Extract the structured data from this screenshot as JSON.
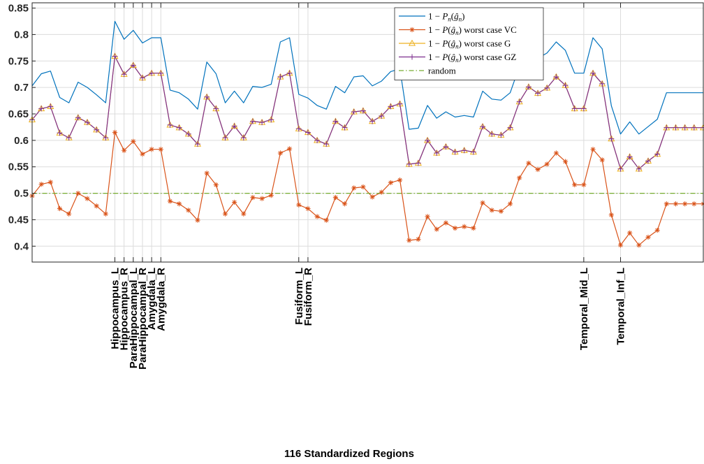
{
  "chart_data": {
    "type": "line",
    "title": "",
    "xlabel": "116 Standardized Regions",
    "ylabel": "",
    "xlim": [
      1,
      74
    ],
    "ylim": [
      0.37,
      0.86
    ],
    "yticks": [
      0.4,
      0.45,
      0.5,
      0.55,
      0.6,
      0.65,
      0.7,
      0.75,
      0.8,
      0.85
    ],
    "ytick_labels": [
      "0.4",
      "0.45",
      "0.5",
      "0.55",
      "0.6",
      "0.65",
      "0.7",
      "0.75",
      "0.8",
      "0.85"
    ],
    "grid": true,
    "legend_position": "top-right",
    "highlighted_regions": [
      {
        "x": 10,
        "label": "Hippocampus_L"
      },
      {
        "x": 11,
        "label": "Hippocampus_R"
      },
      {
        "x": 12,
        "label": "ParaHippocampal_L"
      },
      {
        "x": 13,
        "label": "ParaHippocampal_R"
      },
      {
        "x": 14,
        "label": "Amygdala_L"
      },
      {
        "x": 15,
        "label": "Amygdala_R"
      },
      {
        "x": 30,
        "label": "Fusiform_L"
      },
      {
        "x": 31,
        "label": "Fusiform_R"
      },
      {
        "x": 61,
        "label": "Temporal_Mid_L"
      },
      {
        "x": 65,
        "label": "Temporal_Inf_L"
      }
    ],
    "series": [
      {
        "name": "1 − P_n(ĝ_n)",
        "legend": {
          "pre": "1 − ",
          "main": "P",
          "sub": "n",
          "open": "(",
          "arg": "ĝ",
          "argsub": "n",
          "close": ")",
          "post": ""
        },
        "color": "#0072BD",
        "marker": "none",
        "values": [
          0.703,
          0.726,
          0.731,
          0.681,
          0.671,
          0.71,
          0.7,
          0.686,
          0.671,
          0.825,
          0.791,
          0.808,
          0.784,
          0.794,
          0.794,
          0.695,
          0.69,
          0.678,
          0.659,
          0.748,
          0.726,
          0.671,
          0.693,
          0.671,
          0.702,
          0.7,
          0.706,
          0.786,
          0.794,
          0.687,
          0.68,
          0.666,
          0.659,
          0.702,
          0.69,
          0.72,
          0.722,
          0.703,
          0.712,
          0.73,
          0.735,
          0.621,
          0.623,
          0.666,
          0.642,
          0.654,
          0.644,
          0.647,
          0.644,
          0.693,
          0.678,
          0.676,
          0.69,
          0.74,
          0.767,
          0.755,
          0.765,
          0.786,
          0.77,
          0.727,
          0.727,
          0.794,
          0.773,
          0.665,
          0.612,
          0.635,
          0.612,
          0.626,
          0.64,
          0.69,
          0.69,
          0.69,
          0.69,
          0.69
        ]
      },
      {
        "name": "1 − P(ĝ_n) worst case VC",
        "legend": {
          "pre": "1 − ",
          "main": "P",
          "sub": "",
          "open": "(",
          "arg": "ĝ",
          "argsub": "n",
          "close": ")",
          "post": " worst case VC"
        },
        "color": "#D95319",
        "marker": "asterisk",
        "values": [
          0.495,
          0.517,
          0.521,
          0.471,
          0.461,
          0.5,
          0.49,
          0.476,
          0.461,
          0.615,
          0.581,
          0.598,
          0.574,
          0.583,
          0.583,
          0.485,
          0.48,
          0.468,
          0.449,
          0.538,
          0.516,
          0.461,
          0.483,
          0.461,
          0.492,
          0.49,
          0.496,
          0.576,
          0.584,
          0.478,
          0.471,
          0.456,
          0.449,
          0.492,
          0.48,
          0.51,
          0.512,
          0.493,
          0.502,
          0.52,
          0.525,
          0.411,
          0.413,
          0.456,
          0.432,
          0.444,
          0.434,
          0.437,
          0.434,
          0.482,
          0.468,
          0.466,
          0.48,
          0.529,
          0.557,
          0.545,
          0.555,
          0.576,
          0.56,
          0.516,
          0.516,
          0.583,
          0.563,
          0.459,
          0.402,
          0.425,
          0.402,
          0.417,
          0.43,
          0.48,
          0.48,
          0.48,
          0.48,
          0.48
        ]
      },
      {
        "name": "1 − P(ĝ_n) worst case G",
        "legend": {
          "pre": "1 − ",
          "main": "P",
          "sub": "",
          "open": "(",
          "arg": "ĝ",
          "argsub": "n",
          "close": ")",
          "post": " worst case G"
        },
        "color": "#EDB120",
        "marker": "triangle",
        "values": [
          0.639,
          0.66,
          0.664,
          0.614,
          0.605,
          0.643,
          0.634,
          0.62,
          0.605,
          0.759,
          0.725,
          0.742,
          0.718,
          0.727,
          0.727,
          0.629,
          0.624,
          0.612,
          0.593,
          0.682,
          0.66,
          0.605,
          0.627,
          0.605,
          0.636,
          0.634,
          0.639,
          0.72,
          0.727,
          0.622,
          0.615,
          0.6,
          0.593,
          0.636,
          0.624,
          0.654,
          0.656,
          0.636,
          0.646,
          0.664,
          0.669,
          0.555,
          0.557,
          0.6,
          0.576,
          0.588,
          0.578,
          0.581,
          0.578,
          0.626,
          0.612,
          0.61,
          0.624,
          0.673,
          0.701,
          0.689,
          0.699,
          0.72,
          0.704,
          0.66,
          0.66,
          0.727,
          0.707,
          0.603,
          0.546,
          0.569,
          0.546,
          0.561,
          0.574,
          0.624,
          0.624,
          0.624,
          0.624,
          0.624
        ]
      },
      {
        "name": "1 − P(ĝ_n) worst case GZ",
        "legend": {
          "pre": "1 − ",
          "main": "P",
          "sub": "",
          "open": "(",
          "arg": "ĝ",
          "argsub": "n",
          "close": ")",
          "post": " worst case GZ"
        },
        "color": "#7E2F8E",
        "marker": "plus",
        "values": [
          0.639,
          0.66,
          0.664,
          0.614,
          0.605,
          0.643,
          0.634,
          0.62,
          0.605,
          0.759,
          0.725,
          0.742,
          0.718,
          0.727,
          0.727,
          0.629,
          0.624,
          0.612,
          0.593,
          0.682,
          0.66,
          0.605,
          0.627,
          0.605,
          0.636,
          0.634,
          0.639,
          0.72,
          0.727,
          0.622,
          0.615,
          0.6,
          0.593,
          0.636,
          0.624,
          0.654,
          0.656,
          0.636,
          0.646,
          0.664,
          0.669,
          0.555,
          0.557,
          0.6,
          0.576,
          0.588,
          0.578,
          0.581,
          0.578,
          0.626,
          0.612,
          0.61,
          0.624,
          0.673,
          0.701,
          0.689,
          0.699,
          0.72,
          0.704,
          0.66,
          0.66,
          0.727,
          0.707,
          0.603,
          0.546,
          0.569,
          0.546,
          0.561,
          0.574,
          0.624,
          0.624,
          0.624,
          0.624,
          0.624
        ]
      },
      {
        "name": "random",
        "legend": {
          "pre": "",
          "main": "",
          "sub": "",
          "open": "",
          "arg": "",
          "argsub": "",
          "close": "",
          "post": "random"
        },
        "color": "#77AC30",
        "marker": "none",
        "dash": "dash-dot",
        "values": [
          0.5,
          0.5
        ]
      }
    ]
  }
}
